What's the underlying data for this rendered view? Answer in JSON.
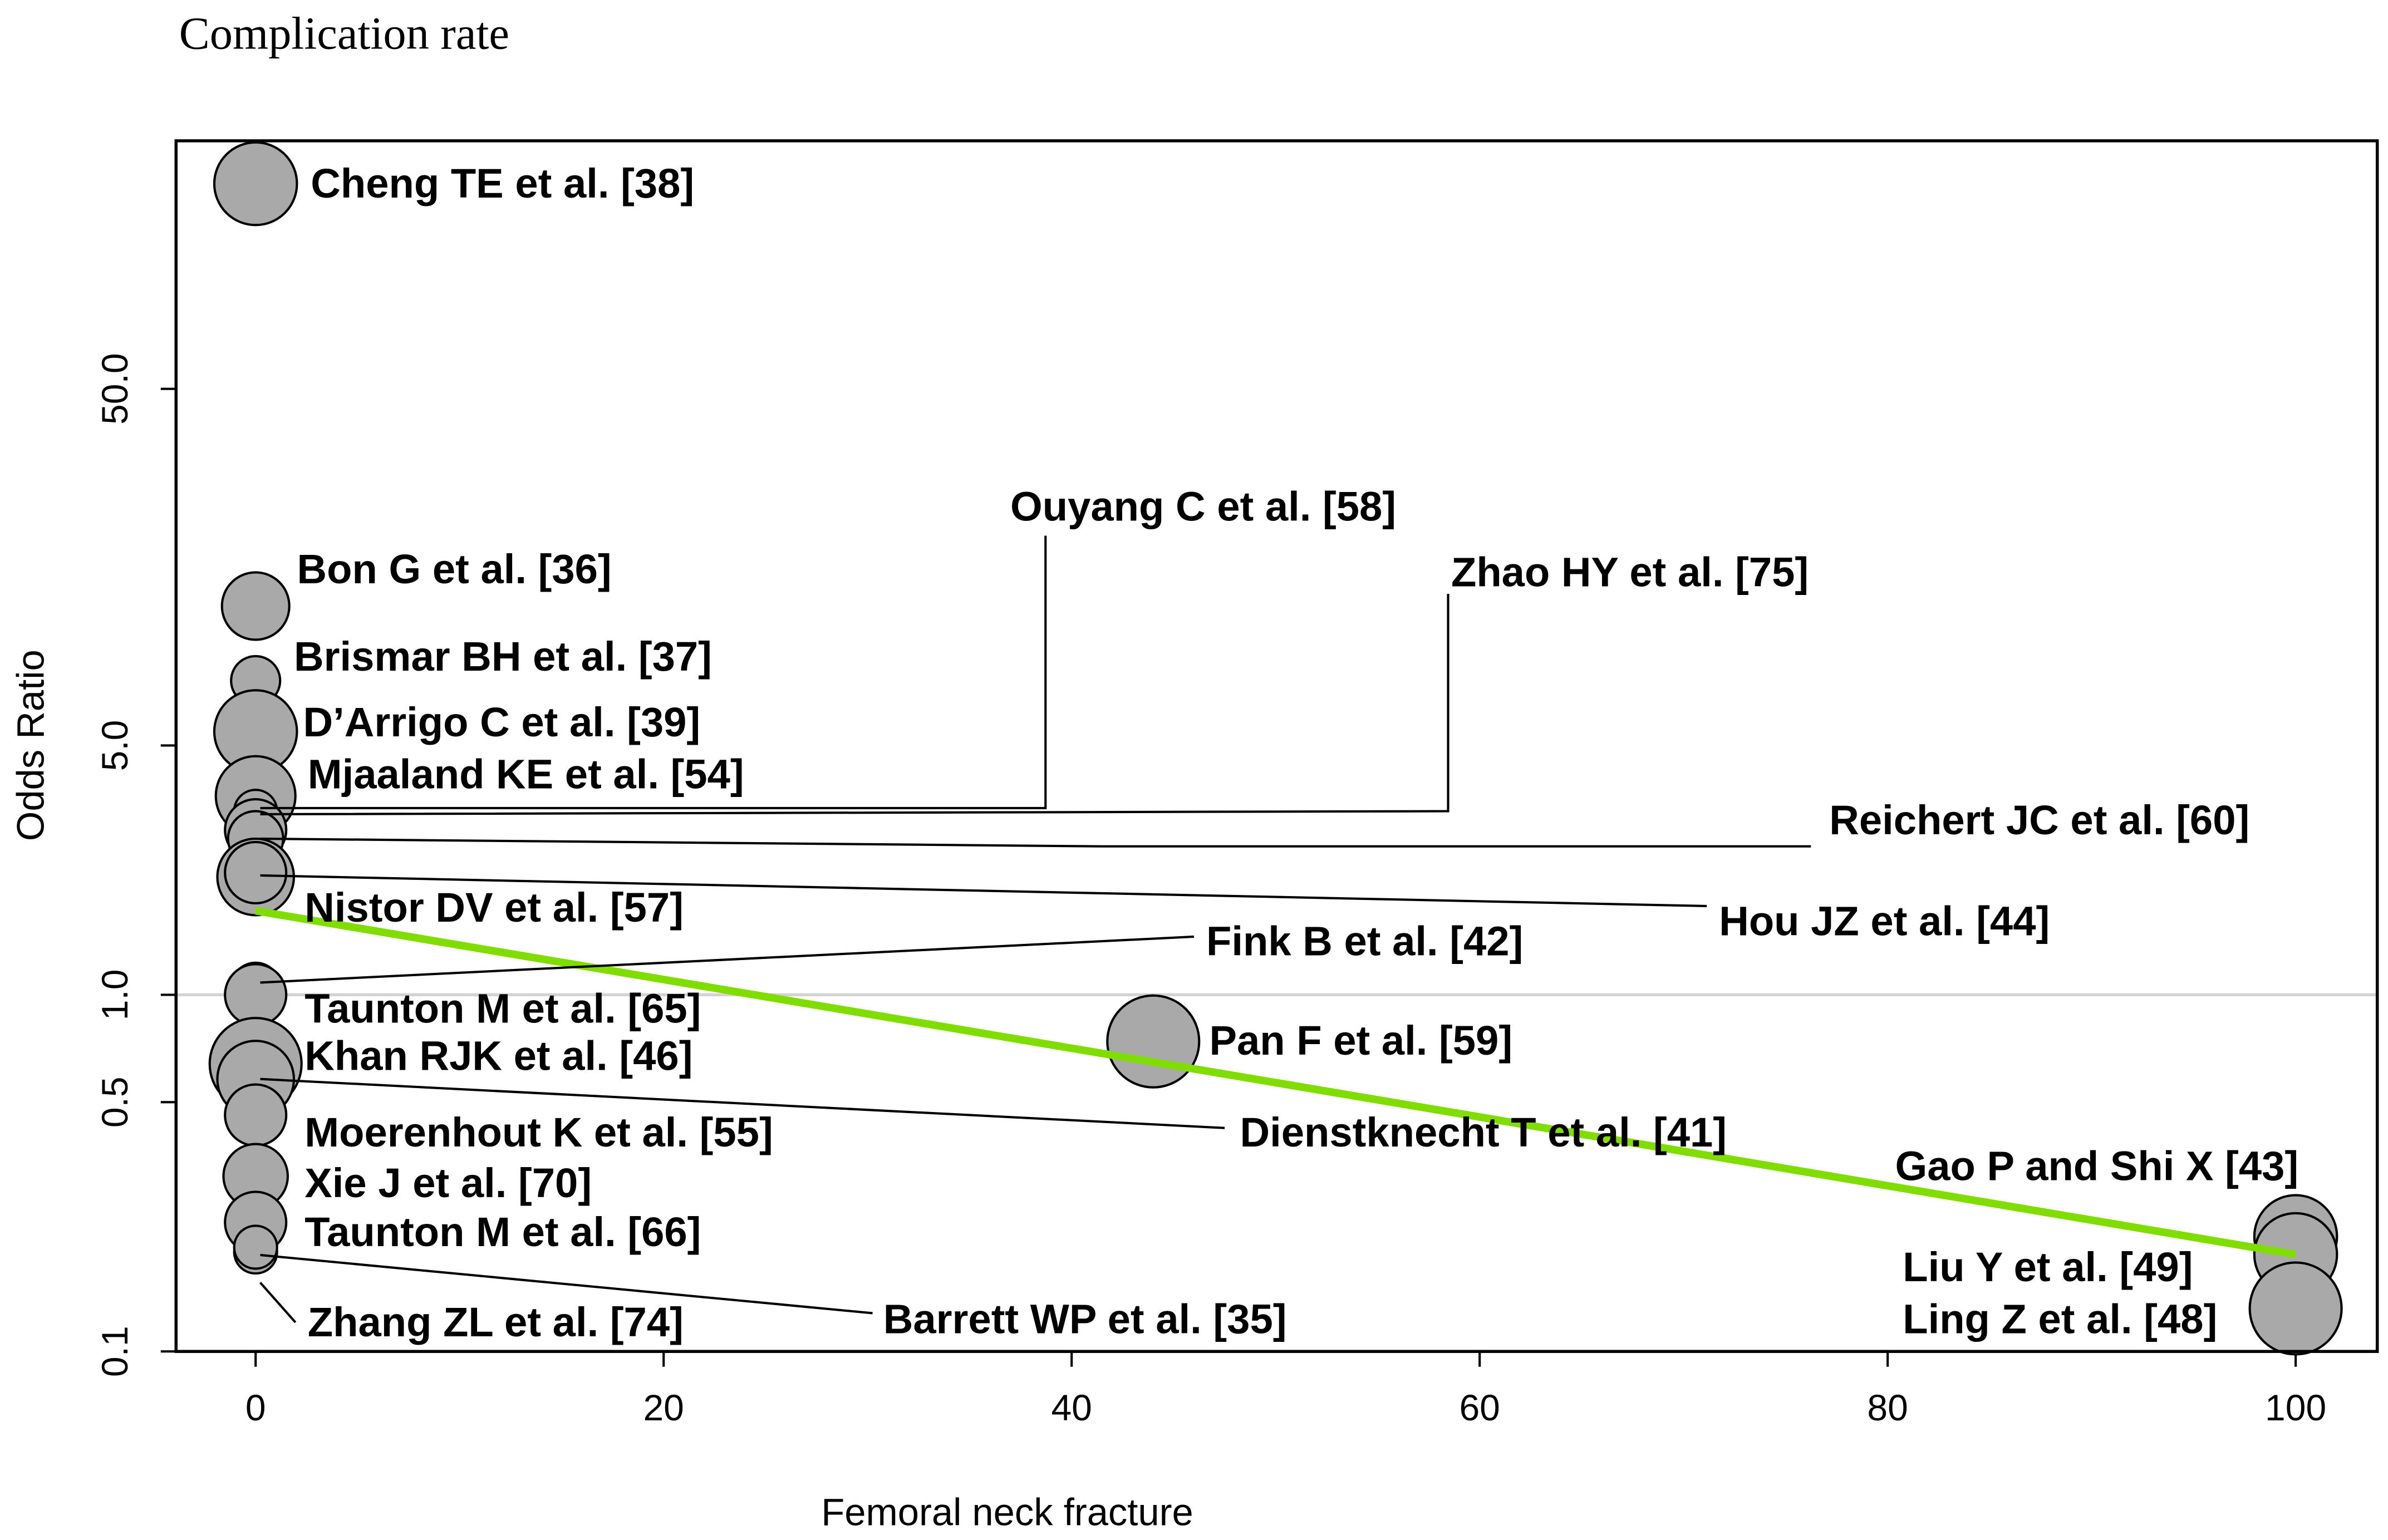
{
  "chart_data": {
    "type": "scatter",
    "title": "Complication rate",
    "x_label": "Femoral neck fracture",
    "y_label": "Odds Ratio",
    "log_y": true,
    "xlim": [
      -3.9,
      104.0
    ],
    "ylim": [
      0.1,
      248
    ],
    "xticks": [
      0,
      20,
      40,
      60,
      80,
      100
    ],
    "yticks": [
      0.1,
      0.5,
      {
        "value": 1,
        "label": "1.0"
      },
      {
        "value": 5,
        "label": "5.0"
      },
      {
        "value": 50,
        "label": "50.0"
      }
    ],
    "reference_line": {
      "y": 1,
      "color": "#d3d3d3"
    },
    "point_color": "#a9a9a9",
    "regression_line": {
      "x": [
        0,
        100
      ],
      "y": [
        1.72,
        0.187
      ],
      "color": "#7fdd00"
    },
    "points": [
      {
        "label": "Cheng TE et al. [38]",
        "x": 0,
        "y": 188,
        "size": 27
      },
      {
        "label": "Bon G et al. [36]",
        "x": 0,
        "y": 12.3,
        "size": 22
      },
      {
        "label": "Brismar BH et al. [37]",
        "x": 0,
        "y": 7.6,
        "size": 16
      },
      {
        "label": "D’Arrigo C et al. [39]",
        "x": 0,
        "y": 5.47,
        "size": 27
      },
      {
        "label": "Mjaaland KE et al. [54]",
        "x": 0,
        "y": 3.61,
        "size": 26
      },
      {
        "label": "Ouyang C et al. [58]",
        "x": 0,
        "y": 3.27,
        "size": 14
      },
      {
        "label": "Zhao HY et al. [75]",
        "x": 0,
        "y": 2.9,
        "size": 20
      },
      {
        "label": "Reichert JC et al. [60]",
        "x": 0,
        "y": 2.74,
        "size": 18
      },
      {
        "label": "Nistor DV et al. [57]",
        "x": 0,
        "y": 2.14,
        "size": 25
      },
      {
        "label": "Hou JZ et al. [44]",
        "x": 0,
        "y": 2.2,
        "size": 20
      },
      {
        "label": "Fink B et al. [42]",
        "x": 0,
        "y": 1.05,
        "size": 16
      },
      {
        "label": "Taunton M et al. [65]",
        "x": 0,
        "y": 1.0,
        "size": 20
      },
      {
        "label": "Khan RJK et al. [46]",
        "x": 0,
        "y": 0.64,
        "size": 30
      },
      {
        "label": "Pan F et al. [59]",
        "x": 44,
        "y": 0.74,
        "size": 30
      },
      {
        "label": "Dienstknecht T et al. [41]",
        "x": 0,
        "y": 0.58,
        "size": 25
      },
      {
        "label": "Moerenhout K et al. [55]",
        "x": 0,
        "y": 0.46,
        "size": 20
      },
      {
        "label": "Xie J et al. [70]",
        "x": 0,
        "y": 0.31,
        "size": 21
      },
      {
        "label": "Taunton M et al. [66]",
        "x": 0,
        "y": 0.23,
        "size": 20
      },
      {
        "label": "Barrett WP et al. [35]",
        "x": 0,
        "y": 0.19,
        "size": 14
      },
      {
        "label": "Zhang ZL et al. [74]",
        "x": 0,
        "y": 0.196,
        "size": 14
      },
      {
        "label": "Gao P and Shi X [43]",
        "x": 100,
        "y": 0.21,
        "size": 27
      },
      {
        "label": "Liu Y et al. [49]",
        "x": 100,
        "y": 0.187,
        "size": 27
      },
      {
        "label": "Ling Z et al. [48]",
        "x": 100,
        "y": 0.132,
        "size": 30
      }
    ]
  }
}
